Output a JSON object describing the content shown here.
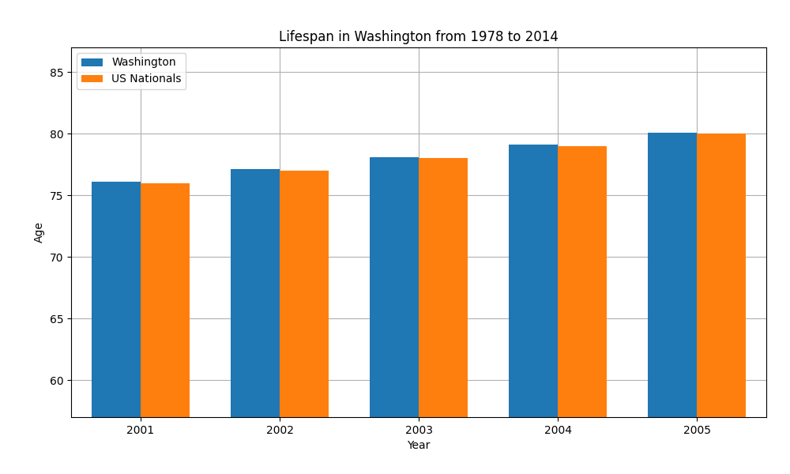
{
  "chart_data": {
    "type": "bar",
    "title": "Lifespan in Washington from 1978 to 2014",
    "x_label": "Year",
    "y_label": "Age",
    "categories": [
      "2001",
      "2002",
      "2003",
      "2004",
      "2005"
    ],
    "series": [
      {
        "name": "Washington",
        "values": [
          76.1,
          77.1,
          78.1,
          79.1,
          80.1
        ]
      },
      {
        "name": "US Nationals",
        "values": [
          76.0,
          77.0,
          78.0,
          79.0,
          80.0
        ]
      }
    ],
    "ylim": [
      57,
      87
    ],
    "yticks": [
      60,
      65,
      70,
      75,
      80,
      85
    ],
    "grid": true,
    "legend": "upper left"
  }
}
